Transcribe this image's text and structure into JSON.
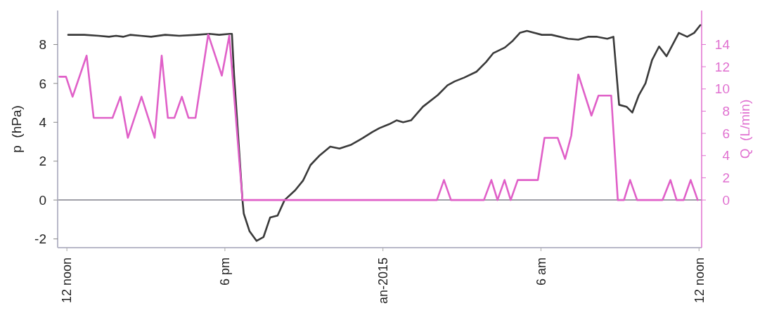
{
  "chart_data": {
    "type": "line",
    "ylabel": "p  (hPa)",
    "y2label": "Q  (L/min)",
    "xlim": [
      "2014-12-31T11:39",
      "2015-01-01T12:06"
    ],
    "xticks": [
      {
        "value": "2014-12-31T12:00",
        "label": "12 noon"
      },
      {
        "value": "2014-12-31T18:00",
        "label": "6 pm"
      },
      {
        "value": "2015-01-01T00:00",
        "label": "an-2015"
      },
      {
        "value": "2015-01-01T06:00",
        "label": "6 am"
      },
      {
        "value": "2015-01-01T12:00",
        "label": "12 noon"
      }
    ],
    "ylim": [
      -2.45,
      9.75
    ],
    "yticks": [
      -2,
      0,
      2,
      4,
      6,
      8
    ],
    "y2lim": [
      -4.29,
      17.06
    ],
    "y2ticks": [
      0,
      2,
      4,
      6,
      8,
      10,
      12,
      14
    ],
    "grid": false,
    "marker": "none",
    "line_style": "solid",
    "ref_lines": [
      {
        "axis": "y",
        "value": 0,
        "color": "#7f7f8a"
      }
    ],
    "series": [
      {
        "color": "#3a3a3a",
        "x": [
          "2014-12-31T12:03",
          "2014-12-31T12:40",
          "2014-12-31T13:12",
          "2014-12-31T13:36",
          "2014-12-31T13:52",
          "2014-12-31T14:08",
          "2014-12-31T14:24",
          "2014-12-31T14:48",
          "2014-12-31T15:12",
          "2014-12-31T15:44",
          "2014-12-31T16:16",
          "2014-12-31T16:56",
          "2014-12-31T17:25",
          "2014-12-31T17:47",
          "2014-12-31T18:11",
          "2014-12-31T18:16",
          "2014-12-31T18:21",
          "2014-12-31T18:40",
          "2014-12-31T18:43",
          "2014-12-31T18:56",
          "2014-12-31T19:12",
          "2014-12-31T19:28",
          "2014-12-31T19:43",
          "2014-12-31T20:00",
          "2014-12-31T20:16",
          "2014-12-31T20:40",
          "2014-12-31T20:58",
          "2014-12-31T21:15",
          "2014-12-31T21:36",
          "2014-12-31T22:00",
          "2014-12-31T22:21",
          "2014-12-31T22:48",
          "2014-12-31T23:15",
          "2014-12-31T23:36",
          "2014-12-31T23:52",
          "2015-01-01T00:14",
          "2015-01-01T00:31",
          "2015-01-01T00:46",
          "2015-01-01T01:04",
          "2015-01-01T01:31",
          "2015-01-01T02:05",
          "2015-01-01T02:27",
          "2015-01-01T02:43",
          "2015-01-01T03:05",
          "2015-01-01T03:33",
          "2015-01-01T03:55",
          "2015-01-01T04:11",
          "2015-01-01T04:38",
          "2015-01-01T04:56",
          "2015-01-01T05:12",
          "2015-01-01T05:28",
          "2015-01-01T06:02",
          "2015-01-01T06:24",
          "2015-01-01T07:02",
          "2015-01-01T07:25",
          "2015-01-01T07:47",
          "2015-01-01T08:08",
          "2015-01-01T08:31",
          "2015-01-01T08:45",
          "2015-01-01T08:58",
          "2015-01-01T09:15",
          "2015-01-01T09:28",
          "2015-01-01T09:43",
          "2015-01-01T09:58",
          "2015-01-01T10:13",
          "2015-01-01T10:29",
          "2015-01-01T10:46",
          "2015-01-01T11:14",
          "2015-01-01T11:33",
          "2015-01-01T11:49",
          "2015-01-01T12:03"
        ],
        "values": [
          8.5,
          8.5,
          8.45,
          8.4,
          8.45,
          8.4,
          8.5,
          8.45,
          8.4,
          8.5,
          8.45,
          8.5,
          8.55,
          8.5,
          8.55,
          8.55,
          6.4,
          0,
          -0.7,
          -1.6,
          -2.1,
          -1.9,
          -0.9,
          -0.8,
          0,
          0.5,
          1.0,
          1.8,
          2.3,
          2.75,
          2.65,
          2.85,
          3.2,
          3.5,
          3.7,
          3.9,
          4.1,
          4.0,
          4.1,
          4.8,
          5.4,
          5.9,
          6.1,
          6.3,
          6.6,
          7.1,
          7.55,
          7.85,
          8.2,
          8.6,
          8.7,
          8.5,
          8.5,
          8.3,
          8.25,
          8.4,
          8.4,
          8.3,
          8.4,
          4.9,
          4.8,
          4.5,
          5.4,
          6.0,
          7.2,
          7.9,
          7.4,
          8.6,
          8.4,
          8.6,
          9.0
        ]
      },
      {
        "color": "#e060c8",
        "axis": "y2",
        "x": [
          "2014-12-31T11:43",
          "2014-12-31T11:58",
          "2014-12-31T12:13",
          "2014-12-31T12:45",
          "2014-12-31T13:01",
          "2014-12-31T13:44",
          "2014-12-31T14:02",
          "2014-12-31T14:19",
          "2014-12-31T14:50",
          "2014-12-31T15:20",
          "2014-12-31T15:36",
          "2014-12-31T15:50",
          "2014-12-31T16:05",
          "2014-12-31T16:22",
          "2014-12-31T16:37",
          "2014-12-31T16:53",
          "2014-12-31T17:22",
          "2014-12-31T17:53",
          "2014-12-31T18:10",
          "2014-12-31T18:40",
          "2015-01-01T02:03",
          "2015-01-01T02:19",
          "2015-01-01T02:35",
          "2015-01-01T03:50",
          "2015-01-01T04:07",
          "2015-01-01T04:21",
          "2015-01-01T04:37",
          "2015-01-01T04:51",
          "2015-01-01T05:07",
          "2015-01-01T05:53",
          "2015-01-01T06:08",
          "2015-01-01T06:38",
          "2015-01-01T06:55",
          "2015-01-01T07:09",
          "2015-01-01T07:25",
          "2015-01-01T07:55",
          "2015-01-01T08:11",
          "2015-01-01T08:40",
          "2015-01-01T08:55",
          "2015-01-01T09:09",
          "2015-01-01T09:23",
          "2015-01-01T09:39",
          "2015-01-01T10:37",
          "2015-01-01T10:55",
          "2015-01-01T11:09",
          "2015-01-01T11:25",
          "2015-01-01T11:41",
          "2015-01-01T11:57"
        ],
        "values": [
          11.1,
          11.1,
          9.3,
          13.0,
          7.4,
          7.4,
          9.3,
          5.6,
          9.3,
          5.6,
          13.0,
          7.4,
          7.4,
          9.3,
          7.4,
          7.4,
          14.9,
          11.2,
          14.8,
          0,
          0,
          1.8,
          0,
          0,
          1.8,
          0,
          1.8,
          0,
          1.8,
          1.8,
          5.6,
          5.6,
          3.7,
          5.8,
          11.3,
          7.6,
          9.4,
          9.4,
          0,
          0,
          1.8,
          0,
          0,
          1.8,
          0,
          0,
          1.8,
          0
        ]
      }
    ]
  }
}
